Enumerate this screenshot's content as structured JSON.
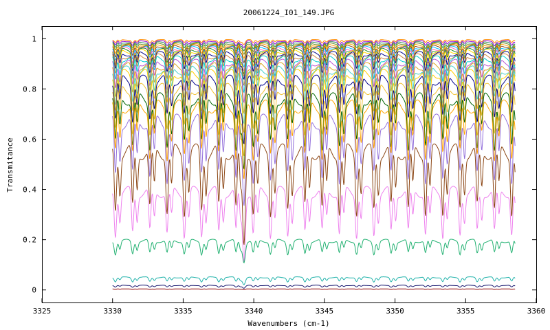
{
  "chart_data": {
    "type": "line",
    "title": "20061224_I01_149.JPG",
    "xlabel": "Wavenumbers (cm-1)",
    "ylabel": "Transmitance",
    "xlim": [
      3325,
      3360
    ],
    "ylim": [
      -0.05,
      1.05
    ],
    "x_ticks": [
      "3325",
      "3330",
      "3335",
      "3340",
      "3345",
      "3350",
      "3355",
      "3360"
    ],
    "y_ticks": [
      "0",
      "0.2",
      "0.4",
      "0.6",
      "0.8",
      "1"
    ],
    "x_range": [
      3330,
      3358.5
    ],
    "grid": false,
    "legend": "none",
    "series": [
      {
        "baseline": 0.995,
        "depth": 0.02,
        "color": "#ff8c00"
      },
      {
        "baseline": 0.99,
        "depth": 0.03,
        "color": "#9400d3"
      },
      {
        "baseline": 0.985,
        "depth": 0.04,
        "color": "#2e8b57"
      },
      {
        "baseline": 0.98,
        "depth": 0.05,
        "color": "#6b8e23"
      },
      {
        "baseline": 0.975,
        "depth": 0.06,
        "color": "#ffa500"
      },
      {
        "baseline": 0.97,
        "depth": 0.07,
        "color": "#8b4513"
      },
      {
        "baseline": 0.965,
        "depth": 0.08,
        "color": "#00bfff"
      },
      {
        "baseline": 0.96,
        "depth": 0.09,
        "color": "#ff69b4"
      },
      {
        "baseline": 0.955,
        "depth": 0.1,
        "color": "#228b22"
      },
      {
        "baseline": 0.95,
        "depth": 0.11,
        "color": "#ffd700"
      },
      {
        "baseline": 0.94,
        "depth": 0.12,
        "color": "#00008b"
      },
      {
        "baseline": 0.93,
        "depth": 0.14,
        "color": "#cd853f"
      },
      {
        "baseline": 0.92,
        "depth": 0.16,
        "color": "#00ced1"
      },
      {
        "baseline": 0.905,
        "depth": 0.18,
        "color": "#ba55d3"
      },
      {
        "baseline": 0.89,
        "depth": 0.2,
        "color": "#daa520"
      },
      {
        "baseline": 0.875,
        "depth": 0.22,
        "color": "#48d1cc"
      },
      {
        "baseline": 0.86,
        "depth": 0.24,
        "color": "#ffcc00"
      },
      {
        "baseline": 0.835,
        "depth": 0.27,
        "color": "#00008b"
      },
      {
        "baseline": 0.8,
        "depth": 0.3,
        "color": "#f0c030"
      },
      {
        "baseline": 0.76,
        "depth": 0.33,
        "color": "#006400"
      },
      {
        "baseline": 0.73,
        "depth": 0.35,
        "color": "#ffa500"
      },
      {
        "baseline": 0.67,
        "depth": 0.4,
        "color": "#9370db"
      },
      {
        "baseline": 0.55,
        "depth": 0.42,
        "color": "#8b4513"
      },
      {
        "baseline": 0.39,
        "depth": 0.3,
        "color": "#ee82ee"
      },
      {
        "baseline": 0.195,
        "depth": 0.09,
        "color": "#20b070"
      },
      {
        "baseline": 0.05,
        "depth": 0.03,
        "color": "#20b2aa"
      },
      {
        "baseline": 0.018,
        "depth": 0.012,
        "color": "#191970"
      },
      {
        "baseline": 0.004,
        "depth": 0.003,
        "color": "#8b0000"
      }
    ]
  }
}
